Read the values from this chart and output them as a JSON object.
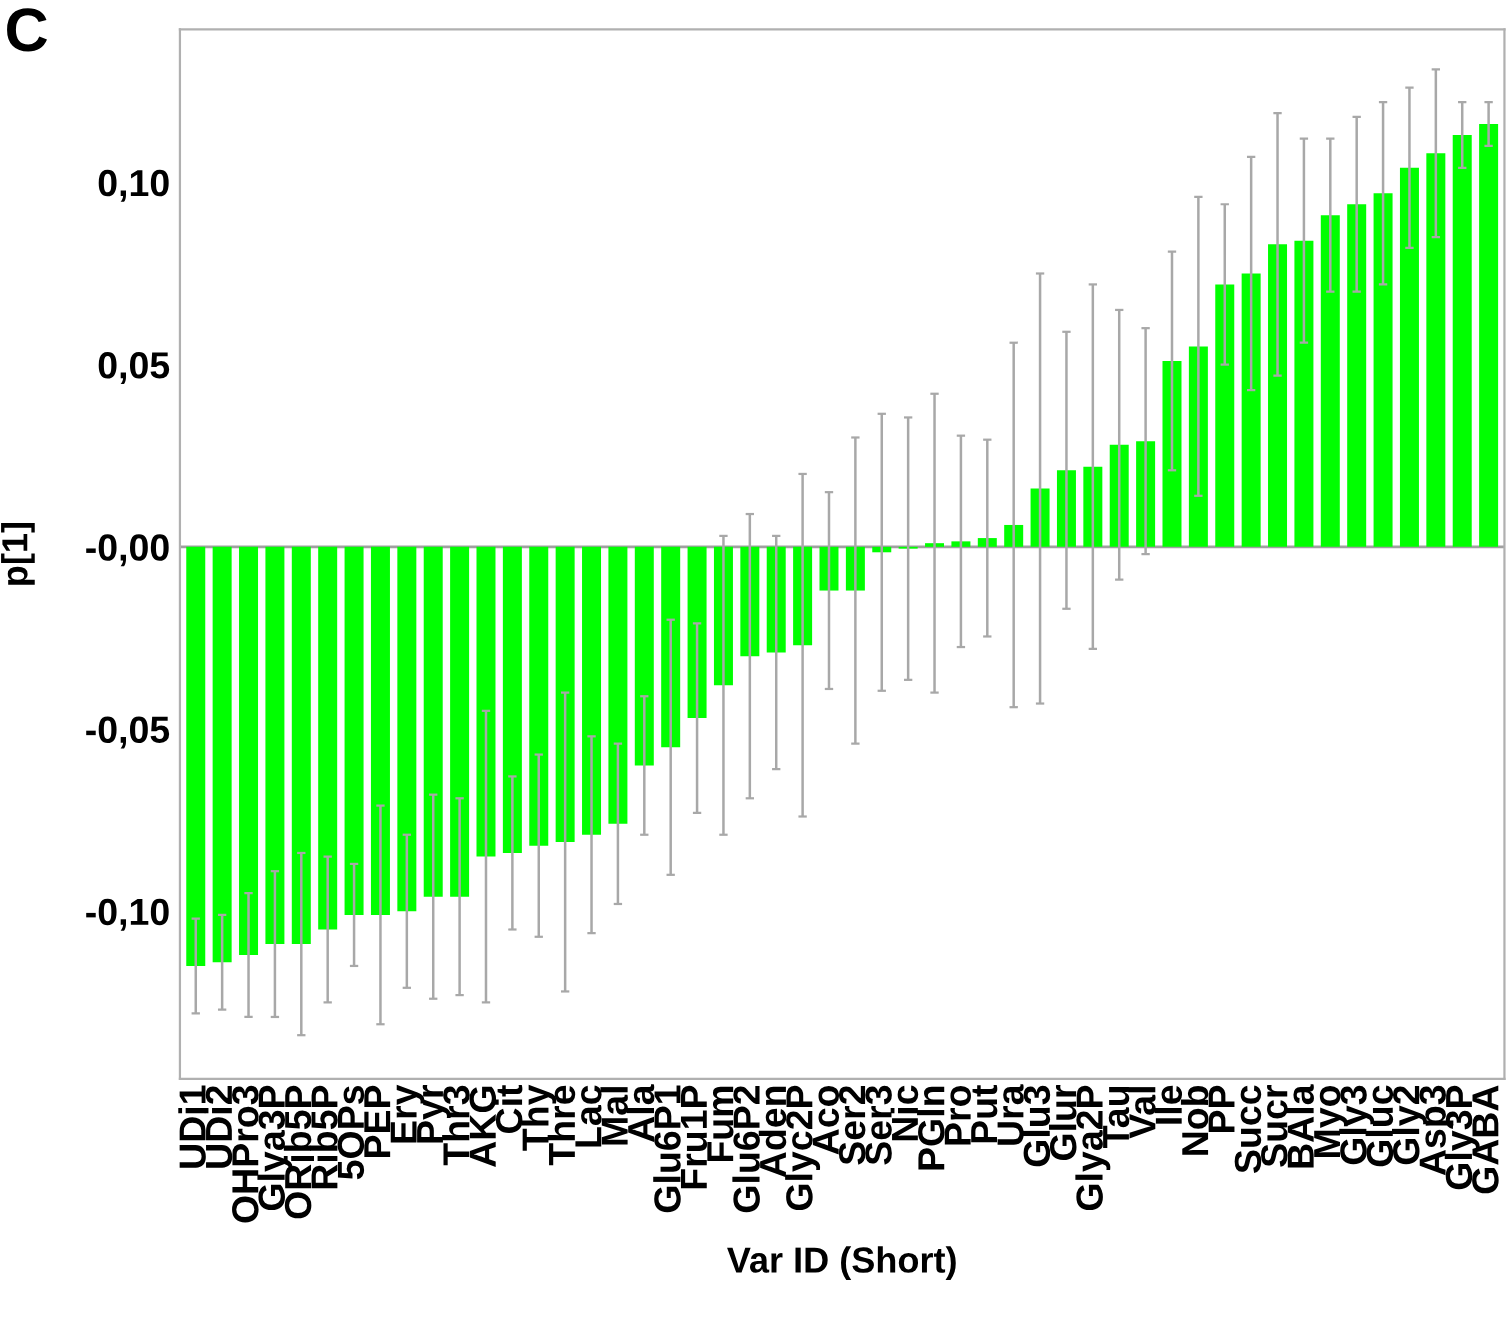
{
  "chart_data": {
    "type": "bar",
    "title": "C",
    "xlabel": "Var ID (Short)",
    "ylabel": "p[1]",
    "categories": [
      "UDi1",
      "UDi2",
      "OHPro3",
      "Glya3P",
      "ORib5P",
      "Rib5P",
      "5OPs",
      "PEP",
      "Ery",
      "Pyr",
      "Thr3",
      "AKG",
      "Cit",
      "Thy",
      "Thre",
      "Lac",
      "Mal",
      "Ala",
      "Glu6P1",
      "Fru1P",
      "Fum",
      "Glu6P2",
      "Aden",
      "Glyc2P",
      "Aco",
      "Ser2",
      "Ser3",
      "Nic",
      "PGln",
      "Pro",
      "Put",
      "Ura",
      "Glu3",
      "Glur",
      "Glya2P",
      "Tau",
      "Val",
      "Ile",
      "Nob",
      "PP",
      "Succ",
      "Sucr",
      "BAla",
      "Myo",
      "Gly3",
      "Gluc",
      "Gly2",
      "Asp3",
      "Gly3P",
      "GABA"
    ],
    "values": [
      -0.115,
      -0.114,
      -0.112,
      -0.109,
      -0.109,
      -0.105,
      -0.101,
      -0.101,
      -0.1,
      -0.096,
      -0.096,
      -0.085,
      -0.084,
      -0.082,
      -0.081,
      -0.079,
      -0.076,
      -0.06,
      -0.055,
      -0.047,
      -0.038,
      -0.03,
      -0.029,
      -0.027,
      -0.012,
      -0.012,
      -0.0015,
      -0.0005,
      0.001,
      0.0015,
      0.0024,
      0.006,
      0.016,
      0.021,
      0.022,
      0.028,
      0.029,
      0.051,
      0.055,
      0.072,
      0.075,
      0.083,
      0.084,
      0.091,
      0.094,
      0.097,
      0.104,
      0.108,
      0.113,
      0.116
    ],
    "errors": [
      0.013,
      0.013,
      0.017,
      0.02,
      0.025,
      0.02,
      0.014,
      0.03,
      0.021,
      0.028,
      0.027,
      0.04,
      0.021,
      0.025,
      0.041,
      0.027,
      0.022,
      0.019,
      0.035,
      0.026,
      0.041,
      0.039,
      0.032,
      0.047,
      0.027,
      0.042,
      0.038,
      0.036,
      0.041,
      0.029,
      0.027,
      0.05,
      0.059,
      0.038,
      0.05,
      0.037,
      0.031,
      0.03,
      0.041,
      0.022,
      0.032,
      0.036,
      0.028,
      0.021,
      0.024,
      0.025,
      0.022,
      0.023,
      0.009,
      0.006
    ],
    "color": "#00ff00",
    "ylim": [
      -0.146,
      0.142
    ],
    "yticks": [
      {
        "value": -0.1,
        "label": "-0,10"
      },
      {
        "value": -0.05,
        "label": "-0,05"
      },
      {
        "value": 0,
        "label": "-0,00"
      },
      {
        "value": 0.05,
        "label": "0,05"
      },
      {
        "value": 0.1,
        "label": "0,10"
      }
    ],
    "ref_lines": [
      {
        "axis": "y",
        "value": 0,
        "color": "#a0a0a0"
      }
    ],
    "grid": false,
    "legend": false
  }
}
